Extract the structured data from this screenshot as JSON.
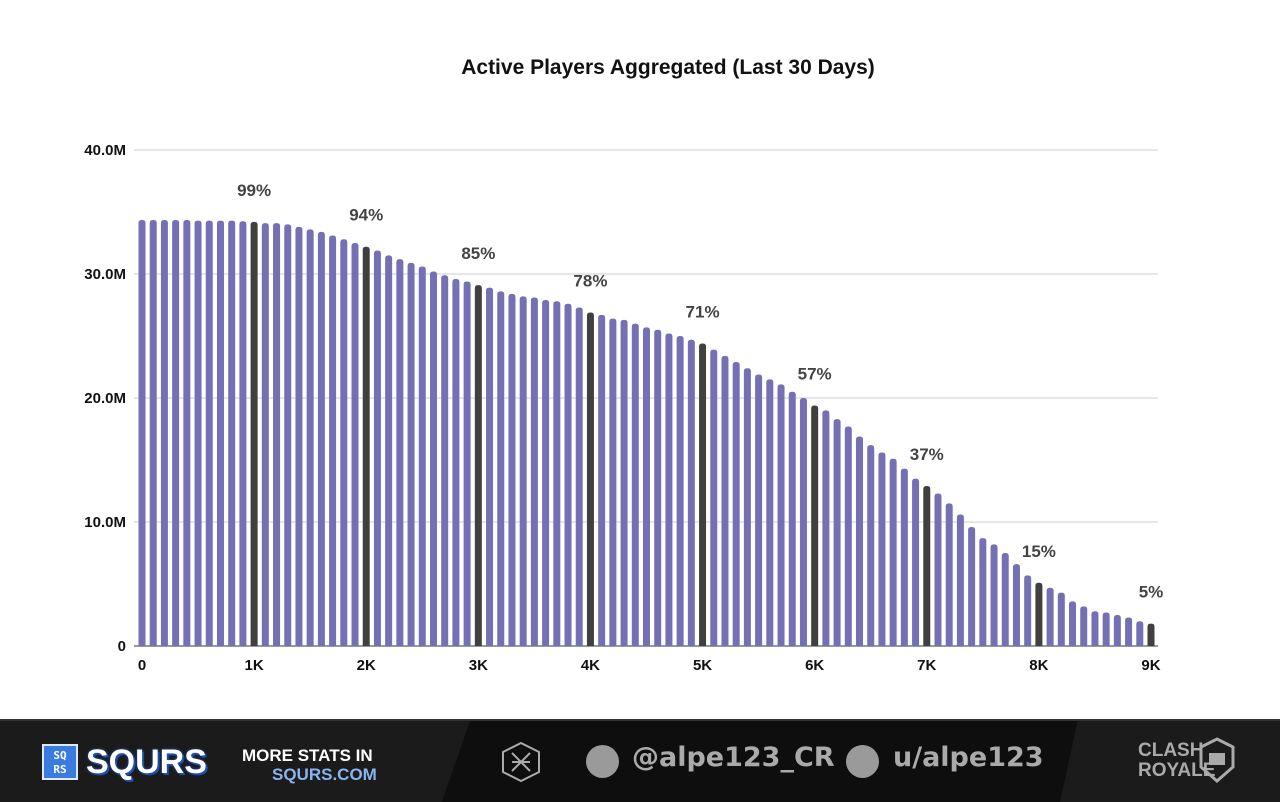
{
  "chart_data": {
    "type": "bar",
    "title": "Active Players Aggregated (Last 30 Days)",
    "xlabel": "",
    "ylabel": "",
    "ylim": [
      0,
      40000000
    ],
    "grid": true,
    "y_ticks": [
      "0",
      "10.0M",
      "20.0M",
      "30.0M",
      "40.0M"
    ],
    "y_tick_values": [
      0,
      10000000,
      20000000,
      30000000,
      40000000
    ],
    "x_ticks": [
      "0",
      "1K",
      "2K",
      "3K",
      "4K",
      "5K",
      "6K",
      "7K",
      "8K",
      "9K"
    ],
    "x_tick_values": [
      0,
      1000,
      2000,
      3000,
      4000,
      5000,
      6000,
      7000,
      8000,
      9000
    ],
    "x_step": 100,
    "values_millions": [
      34.35,
      34.35,
      34.35,
      34.35,
      34.35,
      34.3,
      34.3,
      34.3,
      34.3,
      34.25,
      34.2,
      34.1,
      34.1,
      34.0,
      33.8,
      33.6,
      33.4,
      33.1,
      32.8,
      32.5,
      32.2,
      31.9,
      31.5,
      31.2,
      30.9,
      30.6,
      30.2,
      29.9,
      29.6,
      29.4,
      29.1,
      28.9,
      28.6,
      28.4,
      28.2,
      28.1,
      27.9,
      27.8,
      27.6,
      27.3,
      26.9,
      26.7,
      26.4,
      26.3,
      26.0,
      25.7,
      25.5,
      25.2,
      25.0,
      24.7,
      24.4,
      23.9,
      23.4,
      22.9,
      22.4,
      21.9,
      21.5,
      21.1,
      20.5,
      20.0,
      19.4,
      19.0,
      18.3,
      17.7,
      16.9,
      16.2,
      15.6,
      15.1,
      14.3,
      13.5,
      12.9,
      12.3,
      11.5,
      10.6,
      9.6,
      8.7,
      8.2,
      7.5,
      6.6,
      5.7,
      5.1,
      4.7,
      4.3,
      3.6,
      3.2,
      2.8,
      2.7,
      2.5,
      2.3,
      2.0,
      1.8
    ],
    "highlighted_x": [
      1000,
      2000,
      3000,
      4000,
      5000,
      6000,
      7000,
      8000,
      9000
    ],
    "annotations": [
      {
        "x": 1000,
        "text": "99%"
      },
      {
        "x": 2000,
        "text": "94%"
      },
      {
        "x": 3000,
        "text": "85%"
      },
      {
        "x": 4000,
        "text": "78%"
      },
      {
        "x": 5000,
        "text": "71%"
      },
      {
        "x": 6000,
        "text": "57%"
      },
      {
        "x": 7000,
        "text": "37%"
      },
      {
        "x": 8000,
        "text": "15%"
      },
      {
        "x": 9000,
        "text": "5%"
      }
    ],
    "colors": {
      "bar": "#7570b3",
      "highlight": "#404040",
      "grid": "#cccccc"
    }
  },
  "footer": {
    "brand_short": "SQ RS",
    "brand": "SQURS",
    "more_line1": "MORE STATS IN",
    "more_line2": "SQURS.COM",
    "twitter": "@alpe123_CR",
    "reddit": "u/alpe123",
    "game_logo": "CLASH ROYALE"
  }
}
